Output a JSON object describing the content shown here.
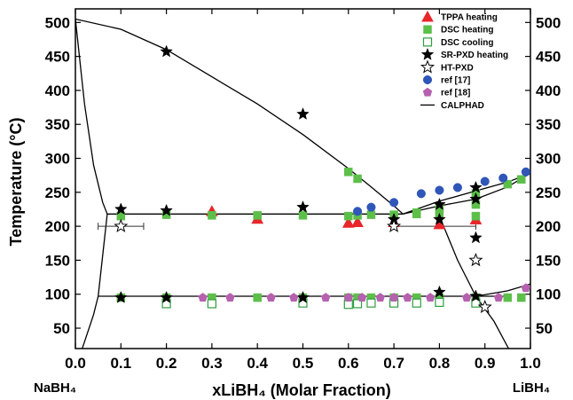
{
  "chart_data": {
    "type": "scatter",
    "xlabel": "xLiBH₄ (Molar Fraction)",
    "ylabel": "Temperature (°C)",
    "xlim": [
      0.0,
      1.0
    ],
    "ylim": [
      20,
      520
    ],
    "x_ticks": [
      "0.0",
      "0.1",
      "0.2",
      "0.3",
      "0.4",
      "0.5",
      "0.6",
      "0.7",
      "0.8",
      "0.9",
      "1.0"
    ],
    "y_ticks": [
      "50",
      "100",
      "150",
      "200",
      "250",
      "300",
      "350",
      "400",
      "450",
      "500"
    ],
    "left_end_label": "NaBH₄",
    "right_end_label": "LiBH₄",
    "legend_position": "top-right",
    "series": [
      {
        "name": "TPPA heating",
        "marker": "triangle",
        "color": "#e8262b",
        "filled": true,
        "points": [
          [
            0.3,
            222
          ],
          [
            0.4,
            211
          ],
          [
            0.6,
            205
          ],
          [
            0.62,
            206
          ],
          [
            0.7,
            206
          ],
          [
            0.8,
            203
          ],
          [
            0.88,
            210
          ]
        ]
      },
      {
        "name": "DSC heating",
        "marker": "square",
        "color": "#5cbf4a",
        "filled": true,
        "points": [
          [
            0.1,
            215
          ],
          [
            0.2,
            217
          ],
          [
            0.3,
            216
          ],
          [
            0.4,
            216
          ],
          [
            0.5,
            216
          ],
          [
            0.6,
            215
          ],
          [
            0.62,
            216
          ],
          [
            0.65,
            217
          ],
          [
            0.7,
            217
          ],
          [
            0.75,
            218
          ],
          [
            0.8,
            217
          ],
          [
            0.88,
            215
          ],
          [
            0.6,
            280
          ],
          [
            0.62,
            270
          ],
          [
            0.75,
            220
          ],
          [
            0.8,
            225
          ],
          [
            0.88,
            232
          ],
          [
            0.88,
            248
          ],
          [
            0.95,
            262
          ],
          [
            0.98,
            269
          ],
          [
            0.1,
            95
          ],
          [
            0.2,
            95
          ],
          [
            0.3,
            95
          ],
          [
            0.4,
            95
          ],
          [
            0.5,
            95
          ],
          [
            0.6,
            95
          ],
          [
            0.62,
            95
          ],
          [
            0.65,
            95
          ],
          [
            0.7,
            95
          ],
          [
            0.75,
            95
          ],
          [
            0.8,
            95
          ],
          [
            0.88,
            95
          ],
          [
            0.95,
            95
          ],
          [
            0.98,
            95
          ]
        ]
      },
      {
        "name": "DSC cooling",
        "marker": "square",
        "color": "#2e9e3e",
        "filled": false,
        "points": [
          [
            0.2,
            86
          ],
          [
            0.3,
            86
          ],
          [
            0.5,
            87
          ],
          [
            0.6,
            85
          ],
          [
            0.62,
            86
          ],
          [
            0.65,
            87
          ],
          [
            0.7,
            87
          ],
          [
            0.75,
            87
          ],
          [
            0.8,
            88
          ],
          [
            0.88,
            87
          ]
        ]
      },
      {
        "name": "SR-PXD heating",
        "marker": "star",
        "color": "#000000",
        "filled": true,
        "points": [
          [
            0.1,
            225
          ],
          [
            0.2,
            223
          ],
          [
            0.5,
            228
          ],
          [
            0.7,
            210
          ],
          [
            0.8,
            232
          ],
          [
            0.8,
            210
          ],
          [
            0.88,
            257
          ],
          [
            0.88,
            240
          ],
          [
            0.88,
            183
          ],
          [
            0.2,
            457
          ],
          [
            0.5,
            365
          ],
          [
            0.1,
            95
          ],
          [
            0.2,
            95
          ],
          [
            0.5,
            95
          ],
          [
            0.8,
            103
          ],
          [
            0.88,
            97
          ]
        ]
      },
      {
        "name": "HT-PXD",
        "marker": "star",
        "color": "#000000",
        "filled": false,
        "points": [
          [
            0.1,
            200
          ],
          [
            0.7,
            200
          ],
          [
            0.88,
            150
          ],
          [
            0.9,
            81
          ]
        ]
      },
      {
        "name": "ref [17]",
        "marker": "circle",
        "color": "#2f56b8",
        "filled": true,
        "points": [
          [
            0.62,
            222
          ],
          [
            0.65,
            228
          ],
          [
            0.7,
            235
          ],
          [
            0.76,
            248
          ],
          [
            0.8,
            253
          ],
          [
            0.84,
            257
          ],
          [
            0.9,
            266
          ],
          [
            0.94,
            271
          ],
          [
            0.99,
            280
          ]
        ]
      },
      {
        "name": "ref [18]",
        "marker": "pentagon",
        "color": "#b660b0",
        "filled": true,
        "points": [
          [
            0.28,
            95
          ],
          [
            0.34,
            95
          ],
          [
            0.43,
            95
          ],
          [
            0.48,
            95
          ],
          [
            0.55,
            95
          ],
          [
            0.6,
            95
          ],
          [
            0.63,
            95
          ],
          [
            0.67,
            95
          ],
          [
            0.7,
            95
          ],
          [
            0.73,
            95
          ],
          [
            0.78,
            95
          ],
          [
            0.86,
            95
          ],
          [
            0.93,
            95
          ],
          [
            0.99,
            109
          ]
        ]
      },
      {
        "name": "CALPHAD",
        "marker": "line",
        "color": "#000000",
        "lines": [
          [
            [
              0.0,
              505
            ],
            [
              0.1,
              490
            ],
            [
              0.2,
              460
            ],
            [
              0.3,
              420
            ],
            [
              0.4,
              380
            ],
            [
              0.5,
              335
            ],
            [
              0.6,
              285
            ],
            [
              0.65,
              258
            ],
            [
              0.7,
              230
            ],
            [
              0.72,
              218
            ]
          ],
          [
            [
              0.0,
              505
            ],
            [
              0.02,
              380
            ],
            [
              0.04,
              290
            ],
            [
              0.06,
              235
            ],
            [
              0.07,
              218
            ]
          ],
          [
            [
              0.07,
              218
            ],
            [
              0.72,
              218
            ]
          ],
          [
            [
              0.72,
              218
            ],
            [
              0.8,
              237
            ],
            [
              0.88,
              252
            ],
            [
              0.95,
              265
            ],
            [
              1.0,
              278
            ]
          ],
          [
            [
              0.72,
              218
            ],
            [
              0.8,
              230
            ],
            [
              0.88,
              240
            ],
            [
              0.95,
              258
            ],
            [
              1.0,
              278
            ]
          ],
          [
            [
              0.05,
              97
            ],
            [
              0.95,
              97
            ]
          ],
          [
            [
              0.07,
              218
            ],
            [
              0.05,
              97
            ]
          ],
          [
            [
              0.05,
              97
            ],
            [
              0.04,
              70
            ],
            [
              0.02,
              30
            ],
            [
              0.01,
              10
            ]
          ],
          [
            [
              0.8,
              215
            ],
            [
              0.84,
              150
            ],
            [
              0.88,
              97
            ]
          ],
          [
            [
              0.88,
              97
            ],
            [
              0.92,
              60
            ],
            [
              0.96,
              10
            ]
          ],
          [
            [
              0.88,
              97
            ],
            [
              0.95,
              105
            ],
            [
              1.0,
              115
            ]
          ]
        ]
      }
    ],
    "error_bars": [
      {
        "x": 0.1,
        "y": 200,
        "xerr_low": 0.05,
        "xerr_high": 0.05
      },
      {
        "x": 0.7,
        "y": 200,
        "xerr_low": 0.0,
        "xerr_high": 0.18
      }
    ]
  }
}
